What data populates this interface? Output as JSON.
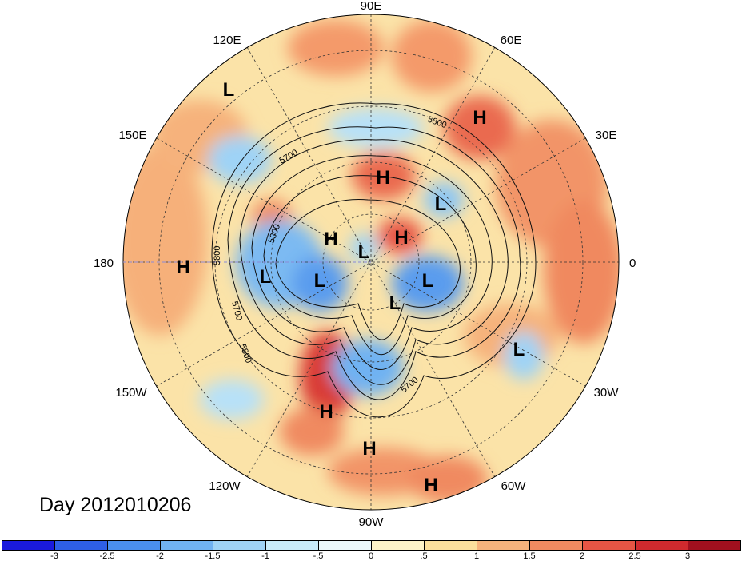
{
  "title": "Day 2012010206",
  "longitude_labels": [
    "90E",
    "60E",
    "30E",
    "0",
    "30W",
    "60W",
    "90W",
    "120W",
    "150W",
    "180",
    "150E",
    "120E"
  ],
  "contour_labels": [
    "5700",
    "5800",
    "5300",
    "5800",
    "5700",
    "5800",
    "5700"
  ],
  "pressure_centers": [
    {
      "type": "L"
    },
    {
      "type": "H"
    },
    {
      "type": "H"
    },
    {
      "type": "L"
    },
    {
      "type": "H"
    },
    {
      "type": "H"
    },
    {
      "type": "L"
    },
    {
      "type": "H"
    },
    {
      "type": "L"
    },
    {
      "type": "L"
    },
    {
      "type": "L"
    },
    {
      "type": "L"
    },
    {
      "type": "L"
    },
    {
      "type": "H"
    },
    {
      "type": "H"
    },
    {
      "type": "H"
    }
  ],
  "colorbar": {
    "labels": [
      "-3",
      "-2.5",
      "-2",
      "-1.5",
      "-1",
      "-.5",
      "0",
      ".5",
      "1",
      "1.5",
      "2",
      "2.5",
      "3"
    ],
    "colors": [
      "#1a1adc",
      "#2e5fe6",
      "#4a8fee",
      "#70b2f2",
      "#9fd3f6",
      "#c9ecfa",
      "#eaf8fb",
      "#fdf3c8",
      "#fbdf9c",
      "#f6b27c",
      "#f08a60",
      "#e65544",
      "#cf2a2e",
      "#a0101e"
    ]
  }
}
